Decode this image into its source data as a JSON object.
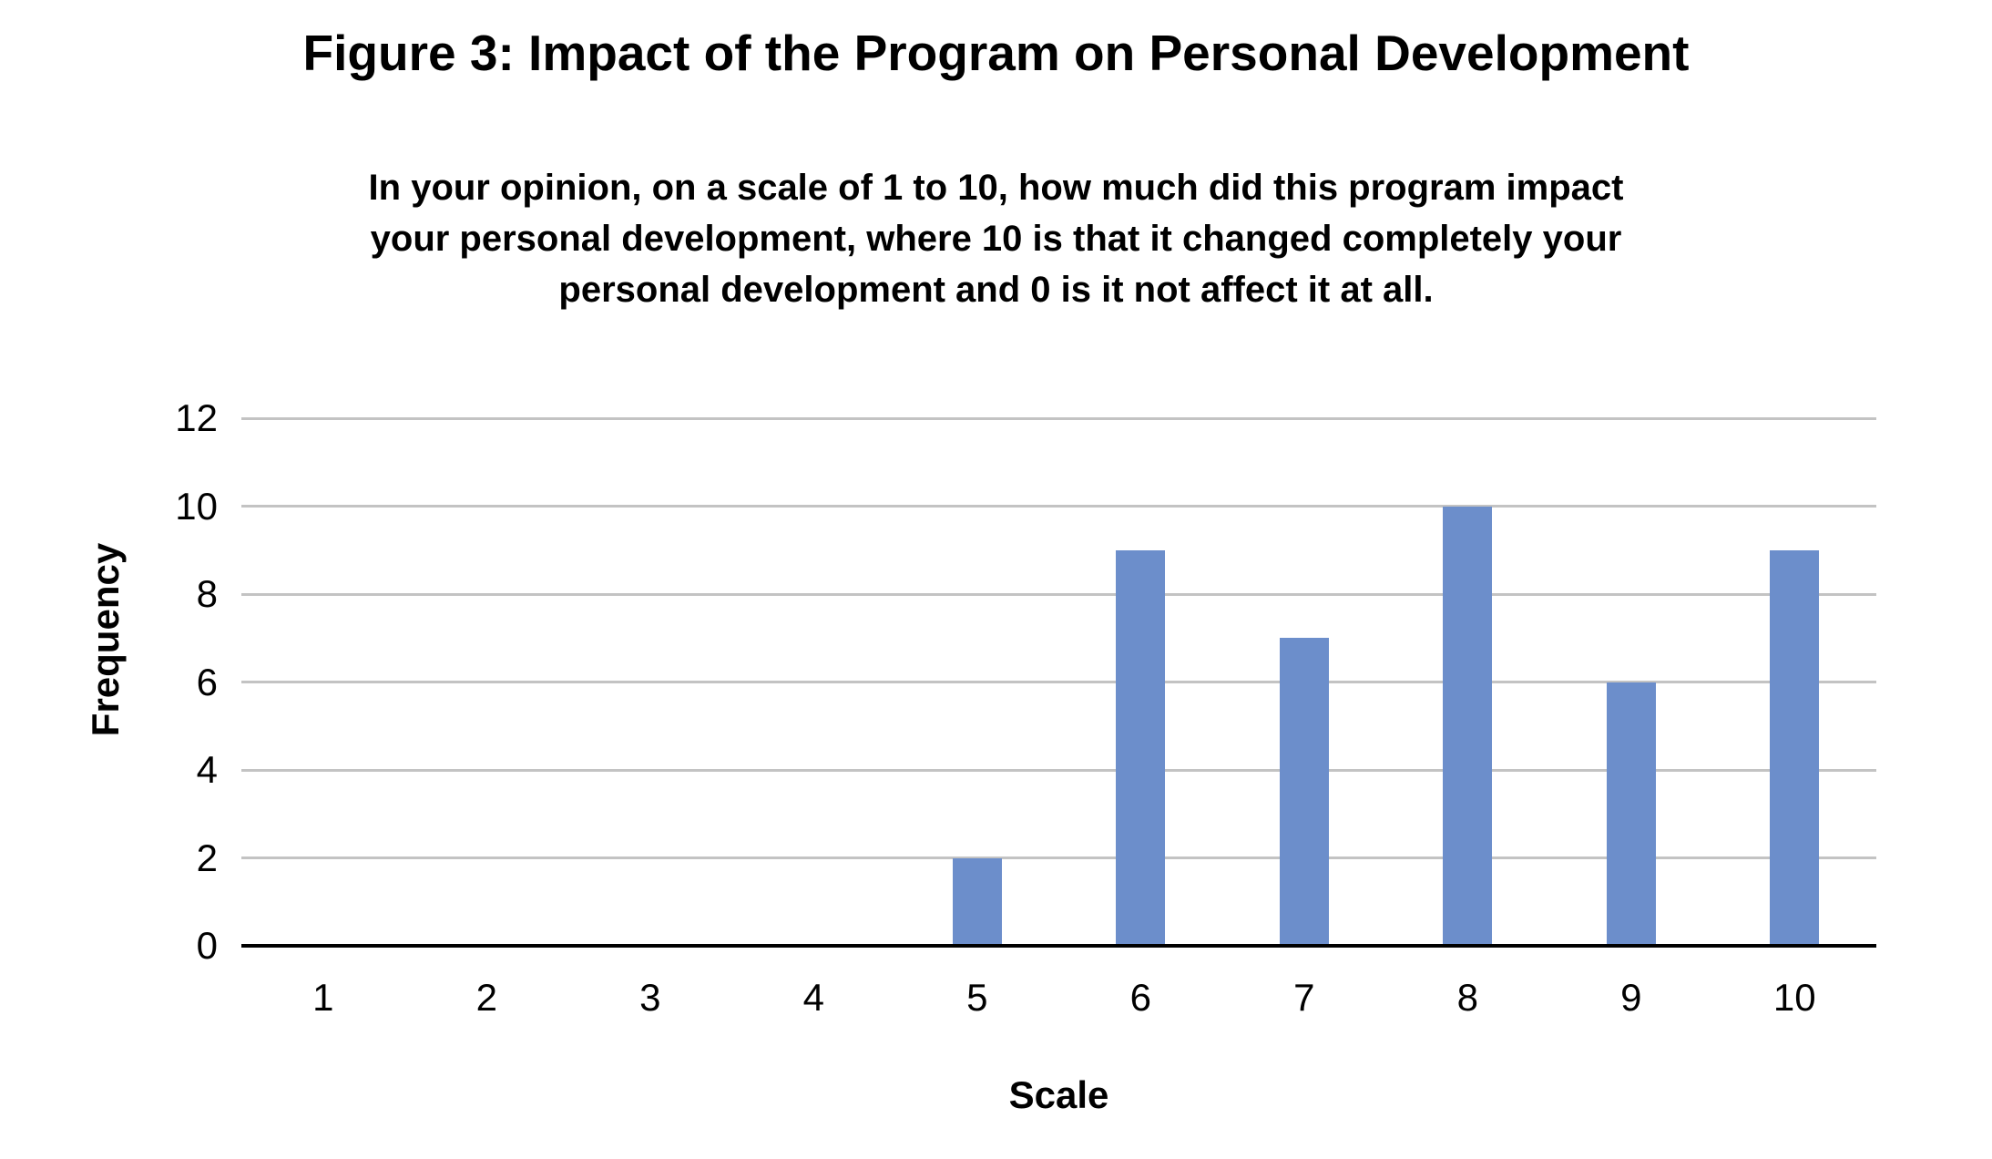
{
  "chart_data": {
    "type": "bar",
    "title": "Figure 3: Impact of the Program on Personal Development",
    "subtitle": "In your opinion, on a scale of 1 to 10, how much did this program impact\nyour personal development, where 10 is that it changed completely your\npersonal development and 0 is it not affect it at all.",
    "categories": [
      "1",
      "2",
      "3",
      "4",
      "5",
      "6",
      "7",
      "8",
      "9",
      "10"
    ],
    "values": [
      0,
      0,
      0,
      0,
      2,
      9,
      7,
      10,
      6,
      9
    ],
    "xlabel": "Scale",
    "ylabel": "Frequency",
    "ylim": [
      0,
      12
    ],
    "yticks": [
      0,
      2,
      4,
      6,
      8,
      10,
      12
    ],
    "grid": true,
    "legend": false,
    "colors": {
      "bar": "#6C8ECB",
      "gridline": "#C3C3C3",
      "axis": "#000000",
      "text": "#000000",
      "background": "#FFFFFF"
    }
  }
}
